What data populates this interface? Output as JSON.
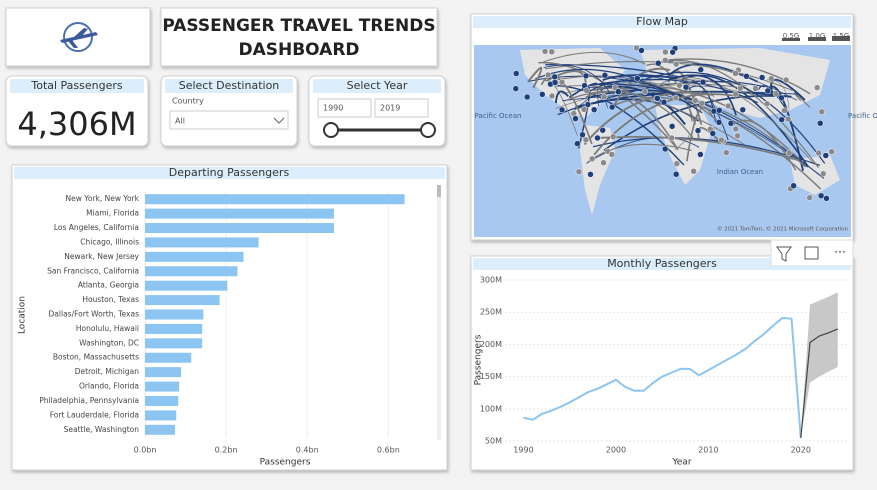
{
  "header": {
    "title_lines": [
      "PASSENGER TRAVEL TRENDS",
      "DASHBOARD"
    ]
  },
  "kpi": {
    "label": "Total Passengers",
    "value": "4,306M"
  },
  "destination_filter": {
    "title": "Select Destination",
    "field": "Country",
    "selection": "All"
  },
  "year_filter": {
    "title": "Select Year",
    "from": "1990",
    "to": "2019"
  },
  "map": {
    "title": "Flow Map",
    "legend": [
      "0.5G",
      "1.0G",
      "1.5G"
    ],
    "labels": [
      "Pacific Ocean",
      "Indian Ocean",
      "Pacific Ocean"
    ],
    "copyright": "© 2021 TomTom, © 2021 Microsoft Corporation"
  },
  "bar_chart": {
    "type": "bar",
    "title": "Departing Passengers",
    "y_label": "Location",
    "x_label": "Passengers",
    "color": "#8cc5f2",
    "categories": [
      "New York, New York",
      "Miami, Florida",
      "Los Angeles, California",
      "Chicago, Illinois",
      "Newark, New Jersey",
      "San Francisco, California",
      "Atlanta, Georgia",
      "Houston, Texas",
      "Dallas/Fort Worth, Texas",
      "Honolulu, Hawaii",
      "Washington, DC",
      "Boston, Massachusetts",
      "Detroit, Michigan",
      "Orlando, Florida",
      "Philadelphia, Pennsylvania",
      "Fort Lauderdale, Florida",
      "Seattle, Washington"
    ],
    "values": [
      0.64,
      0.466,
      0.466,
      0.28,
      0.243,
      0.228,
      0.203,
      0.184,
      0.144,
      0.141,
      0.141,
      0.114,
      0.089,
      0.084,
      0.082,
      0.077,
      0.074
    ],
    "xlim": [
      0,
      0.72
    ],
    "xticks": [
      {
        "value": 0,
        "label": "0.0bn"
      },
      {
        "value": 0.2,
        "label": "0.2bn"
      },
      {
        "value": 0.4,
        "label": "0.4bn"
      },
      {
        "value": 0.6,
        "label": "0.6bn"
      }
    ]
  },
  "line_chart": {
    "type": "line",
    "title": "Monthly Passengers",
    "x_label": "Year",
    "y_label": "Passengers",
    "color": "#8cc5f2",
    "x": [
      1990,
      1991,
      1992,
      1993,
      1994,
      1995,
      1996,
      1997,
      1998,
      1999,
      2000,
      2001,
      2002,
      2003,
      2004,
      2005,
      2006,
      2007,
      2008,
      2009,
      2010,
      2011,
      2012,
      2013,
      2014,
      2015,
      2016,
      2017,
      2018,
      2019,
      2020
    ],
    "values": [
      86,
      83,
      92,
      97,
      103,
      110,
      118,
      126,
      131,
      138,
      145,
      134,
      128,
      128,
      140,
      150,
      156,
      162,
      162,
      152,
      160,
      168,
      176,
      184,
      193,
      205,
      216,
      229,
      241,
      240,
      55
    ],
    "forecast": {
      "color": "#444444",
      "band_color": "#c8c8c8",
      "x": [
        2020,
        2021,
        2022,
        2023,
        2024
      ],
      "values": [
        55,
        203,
        213,
        218,
        224
      ],
      "upper": [
        55,
        262,
        268,
        274,
        281
      ],
      "lower": [
        55,
        141,
        150,
        158,
        165
      ]
    },
    "xlim": [
      1988,
      2025
    ],
    "xticks": [
      1990,
      2000,
      2010,
      2020
    ],
    "ylim": [
      50,
      300
    ],
    "yticks": [
      {
        "value": 50,
        "label": "50M"
      },
      {
        "value": 100,
        "label": "100M"
      },
      {
        "value": 150,
        "label": "150M"
      },
      {
        "value": 200,
        "label": "200M"
      },
      {
        "value": 250,
        "label": "250M"
      },
      {
        "value": 300,
        "label": "300M"
      }
    ]
  }
}
